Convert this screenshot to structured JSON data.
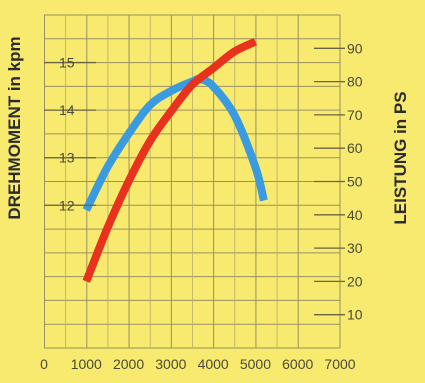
{
  "chart_data": {
    "type": "line",
    "title": "",
    "xlabel": "",
    "ylabel_left": "DREHMOMENT in kpm",
    "ylabel_right": "LEISTUNG in PS",
    "xlim": [
      0,
      7000
    ],
    "ylim_left": [
      9,
      16
    ],
    "ylim_right": [
      0,
      100
    ],
    "x_ticks": [
      0,
      1000,
      2000,
      3000,
      4000,
      5000,
      6000,
      7000
    ],
    "y_ticks_left": [
      12,
      13,
      14,
      15
    ],
    "y_ticks_right": [
      10,
      20,
      30,
      40,
      50,
      60,
      70,
      80,
      90
    ],
    "grid": true,
    "background": "#f7ea6e",
    "series": [
      {
        "axis": "left",
        "color": "#3b9be0",
        "x": [
          1000,
          1500,
          2000,
          2500,
          3000,
          3500,
          3700,
          4000,
          4500,
          5000,
          5200
        ],
        "values": [
          11.9,
          12.8,
          13.5,
          14.1,
          14.4,
          14.6,
          14.65,
          14.5,
          13.9,
          12.8,
          12.1
        ]
      },
      {
        "axis": "right",
        "color": "#e8321e",
        "x": [
          1000,
          1500,
          2000,
          2500,
          3000,
          3500,
          4000,
          4500,
          5000
        ],
        "values": [
          20,
          36,
          50,
          62,
          71,
          79,
          84,
          89,
          92
        ]
      }
    ]
  }
}
